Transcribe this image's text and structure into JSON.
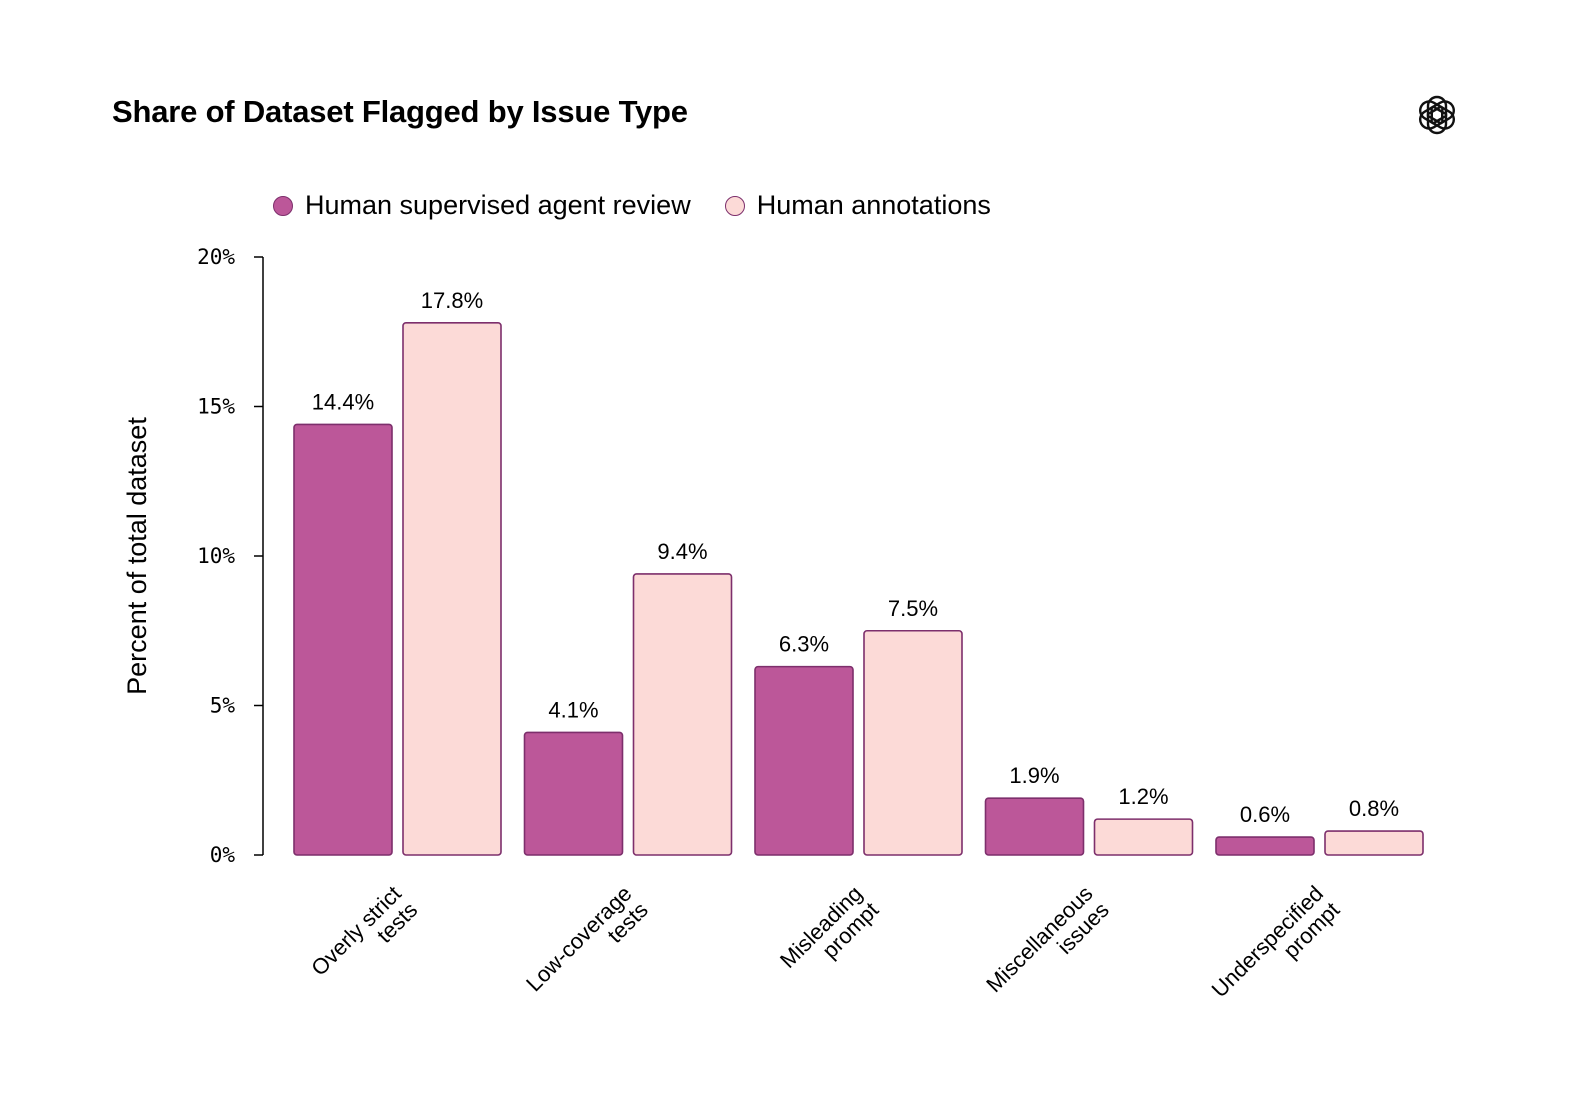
{
  "title": "Share of Dataset Flagged by Issue Type",
  "logo_icon": "openai-logo-icon",
  "colors": {
    "series_a": "#bc5799",
    "series_b": "#fcdad7",
    "border": "#7d2f6c"
  },
  "chart_data": {
    "type": "bar",
    "ylabel": "Percent of total dataset",
    "ylim": [
      0,
      20
    ],
    "yticks": [
      "0%",
      "5%",
      "10%",
      "15%",
      "20%"
    ],
    "ytick_values": [
      0,
      5,
      10,
      15,
      20
    ],
    "categories": [
      [
        "Overly strict",
        "tests"
      ],
      [
        "Low-coverage",
        "tests"
      ],
      [
        "Misleading",
        "prompt"
      ],
      [
        "Miscellaneous",
        "issues"
      ],
      [
        "Underspecified",
        "prompt"
      ]
    ],
    "series": [
      {
        "name": "Human supervised agent review",
        "color": "#bc5799",
        "values": [
          14.4,
          4.1,
          6.3,
          1.9,
          0.6
        ],
        "labels": [
          "14.4%",
          "4.1%",
          "6.3%",
          "1.9%",
          "0.6%"
        ]
      },
      {
        "name": "Human annotations",
        "color": "#fcdad7",
        "values": [
          17.8,
          9.4,
          7.5,
          1.2,
          0.8
        ],
        "labels": [
          "17.8%",
          "9.4%",
          "7.5%",
          "1.2%",
          "0.8%"
        ]
      }
    ],
    "legend_position": "top-left",
    "grid": false
  }
}
